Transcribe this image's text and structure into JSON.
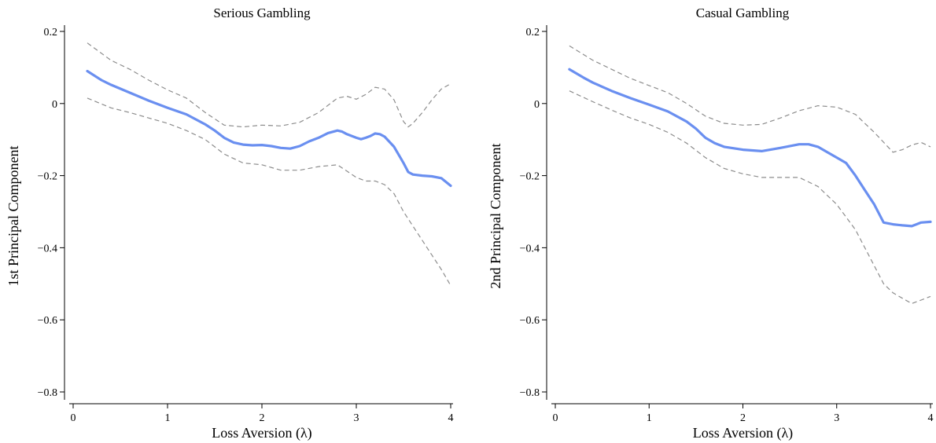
{
  "colors": {
    "estimate": "#6a8ff0",
    "ci": "#8c8c8c",
    "axis": "#000000"
  },
  "chart_data": [
    {
      "type": "line",
      "title": "Serious Gambling",
      "xlabel": "Loss Aversion (λ)",
      "ylabel": "1st Principal Component",
      "xlim": [
        -0.1,
        4.05
      ],
      "ylim": [
        -0.83,
        0.22
      ],
      "x_ticks": [
        0,
        1,
        2,
        3,
        4
      ],
      "x_tick_labels": [
        "0",
        "1",
        "2",
        "3",
        "4"
      ],
      "y_ticks": [
        0.2,
        0,
        -0.2,
        -0.4,
        -0.6,
        -0.8
      ],
      "y_tick_labels": [
        "0.2",
        "0",
        "−0.2",
        "−0.4",
        "−0.6",
        "−0.8"
      ],
      "grid": false,
      "series": [
        {
          "style": "solid",
          "x": [
            0.15,
            0.3,
            0.4,
            0.6,
            0.8,
            1.0,
            1.2,
            1.4,
            1.5,
            1.6,
            1.7,
            1.8,
            1.9,
            2.0,
            2.1,
            2.2,
            2.3,
            2.4,
            2.5,
            2.6,
            2.7,
            2.8,
            2.85,
            2.9,
            3.0,
            3.05,
            3.1,
            3.15,
            3.2,
            3.25,
            3.3,
            3.4,
            3.5,
            3.55,
            3.6,
            3.7,
            3.8,
            3.9,
            4.0
          ],
          "y": [
            0.09,
            0.065,
            0.052,
            0.03,
            0.008,
            -0.012,
            -0.03,
            -0.058,
            -0.075,
            -0.095,
            -0.108,
            -0.114,
            -0.116,
            -0.115,
            -0.118,
            -0.123,
            -0.125,
            -0.118,
            -0.105,
            -0.095,
            -0.082,
            -0.075,
            -0.078,
            -0.085,
            -0.095,
            -0.099,
            -0.095,
            -0.09,
            -0.083,
            -0.085,
            -0.092,
            -0.12,
            -0.165,
            -0.19,
            -0.197,
            -0.2,
            -0.202,
            -0.207,
            -0.228
          ]
        },
        {
          "style": "dashed",
          "x": [
            0.15,
            0.4,
            0.6,
            0.8,
            1.0,
            1.2,
            1.4,
            1.6,
            1.8,
            2.0,
            2.2,
            2.4,
            2.6,
            2.8,
            2.9,
            3.0,
            3.1,
            3.2,
            3.3,
            3.4,
            3.5,
            3.55,
            3.6,
            3.7,
            3.8,
            3.9,
            4.0
          ],
          "y": [
            0.168,
            0.12,
            0.095,
            0.065,
            0.038,
            0.015,
            -0.025,
            -0.06,
            -0.065,
            -0.06,
            -0.062,
            -0.052,
            -0.025,
            0.015,
            0.02,
            0.012,
            0.025,
            0.045,
            0.04,
            0.01,
            -0.05,
            -0.065,
            -0.055,
            -0.025,
            0.01,
            0.04,
            0.055
          ]
        },
        {
          "style": "dashed",
          "x": [
            0.15,
            0.4,
            0.6,
            0.8,
            1.0,
            1.2,
            1.4,
            1.6,
            1.8,
            2.0,
            2.2,
            2.4,
            2.6,
            2.8,
            3.0,
            3.1,
            3.2,
            3.3,
            3.4,
            3.5,
            3.6,
            3.7,
            3.8,
            3.9,
            4.0
          ],
          "y": [
            0.015,
            -0.012,
            -0.025,
            -0.04,
            -0.055,
            -0.075,
            -0.1,
            -0.14,
            -0.165,
            -0.17,
            -0.185,
            -0.185,
            -0.175,
            -0.17,
            -0.205,
            -0.215,
            -0.215,
            -0.225,
            -0.25,
            -0.3,
            -0.34,
            -0.38,
            -0.42,
            -0.46,
            -0.505
          ]
        }
      ]
    },
    {
      "type": "line",
      "title": "Casual Gambling",
      "xlabel": "Loss Aversion (λ)",
      "ylabel": "2nd Principal Component",
      "xlim": [
        -0.1,
        4.0
      ],
      "ylim": [
        -0.83,
        0.22
      ],
      "x_ticks": [
        0,
        1,
        2,
        3,
        4
      ],
      "x_tick_labels": [
        "0",
        "1",
        "2",
        "3",
        "4"
      ],
      "y_ticks": [
        0.2,
        0,
        -0.2,
        -0.4,
        -0.6,
        -0.8
      ],
      "y_tick_labels": [
        "0.2",
        "0",
        "−0.2",
        "−0.4",
        "−0.6",
        "−0.8"
      ],
      "grid": false,
      "series": [
        {
          "style": "solid",
          "x": [
            0.15,
            0.3,
            0.4,
            0.6,
            0.8,
            1.0,
            1.2,
            1.4,
            1.5,
            1.6,
            1.7,
            1.8,
            2.0,
            2.2,
            2.4,
            2.6,
            2.7,
            2.8,
            2.9,
            3.0,
            3.1,
            3.2,
            3.3,
            3.4,
            3.5,
            3.6,
            3.7,
            3.8,
            3.85,
            3.9,
            4.0
          ],
          "y": [
            0.095,
            0.072,
            0.058,
            0.035,
            0.015,
            -0.003,
            -0.022,
            -0.05,
            -0.07,
            -0.095,
            -0.11,
            -0.12,
            -0.128,
            -0.132,
            -0.123,
            -0.113,
            -0.113,
            -0.12,
            -0.135,
            -0.15,
            -0.165,
            -0.2,
            -0.24,
            -0.28,
            -0.33,
            -0.335,
            -0.338,
            -0.34,
            -0.335,
            -0.33,
            -0.328
          ]
        },
        {
          "style": "dashed",
          "x": [
            0.15,
            0.4,
            0.6,
            0.8,
            1.0,
            1.2,
            1.4,
            1.6,
            1.8,
            2.0,
            2.2,
            2.4,
            2.6,
            2.8,
            3.0,
            3.2,
            3.4,
            3.6,
            3.7,
            3.8,
            3.9,
            4.0
          ],
          "y": [
            0.16,
            0.12,
            0.095,
            0.07,
            0.05,
            0.03,
            0.0,
            -0.035,
            -0.055,
            -0.06,
            -0.058,
            -0.04,
            -0.02,
            -0.006,
            -0.01,
            -0.03,
            -0.08,
            -0.135,
            -0.128,
            -0.115,
            -0.108,
            -0.12
          ]
        },
        {
          "style": "dashed",
          "x": [
            0.15,
            0.4,
            0.6,
            0.8,
            1.0,
            1.2,
            1.4,
            1.6,
            1.8,
            2.0,
            2.2,
            2.4,
            2.6,
            2.8,
            3.0,
            3.2,
            3.4,
            3.5,
            3.6,
            3.7,
            3.8,
            3.9,
            4.0
          ],
          "y": [
            0.035,
            0.005,
            -0.018,
            -0.04,
            -0.058,
            -0.08,
            -0.11,
            -0.15,
            -0.18,
            -0.195,
            -0.205,
            -0.205,
            -0.205,
            -0.23,
            -0.28,
            -0.35,
            -0.45,
            -0.5,
            -0.525,
            -0.54,
            -0.555,
            -0.545,
            -0.535
          ]
        }
      ]
    }
  ]
}
